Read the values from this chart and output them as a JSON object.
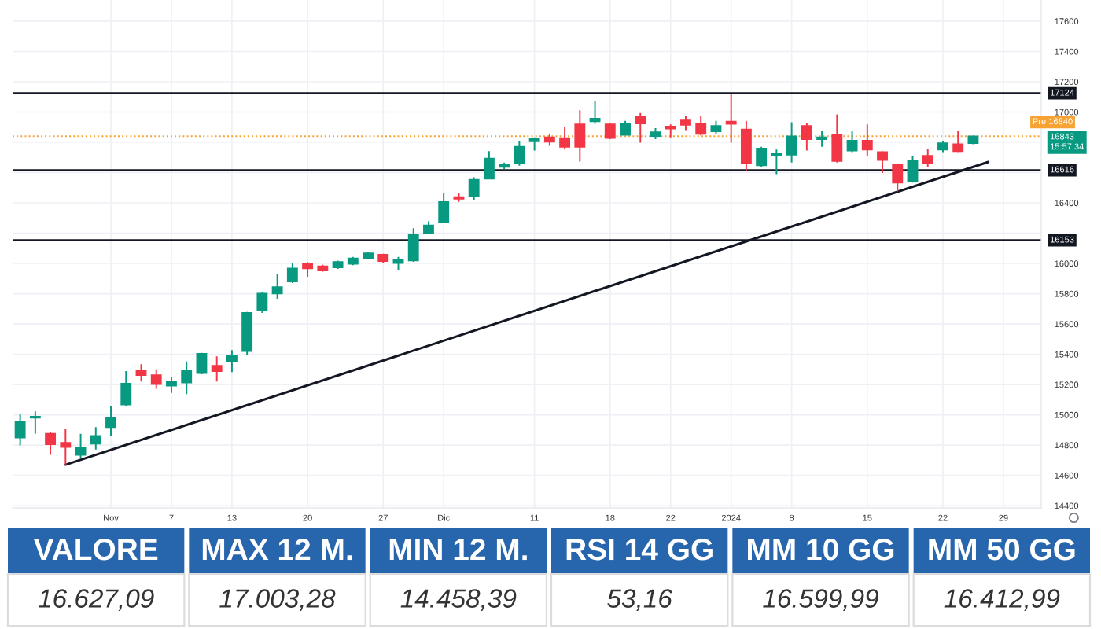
{
  "chart_data": [
    {
      "type": "candlestick",
      "categories": [
        null,
        null,
        null,
        null,
        null,
        null,
        "Nov",
        null,
        null,
        null,
        "7",
        null,
        null,
        null,
        "13",
        null,
        null,
        null,
        null,
        "20",
        null,
        null,
        null,
        null,
        "27",
        null,
        null,
        null,
        "Dic",
        null,
        null,
        null,
        null,
        null,
        "11",
        null,
        null,
        null,
        null,
        "18",
        null,
        null,
        null,
        "22",
        null,
        null,
        null,
        "2024",
        null,
        null,
        null,
        "8",
        null,
        null,
        null,
        null,
        "15",
        null,
        null,
        null,
        null,
        "22",
        null,
        null,
        null,
        "29",
        null,
        null
      ],
      "ohlc": [
        [
          14850,
          15006,
          14798,
          14954
        ],
        [
          14981,
          15023,
          14874,
          14988
        ],
        [
          14874,
          14885,
          14736,
          14805
        ],
        [
          14815,
          14909,
          14670,
          14788
        ],
        [
          14736,
          14874,
          14712,
          14781
        ],
        [
          14809,
          14919,
          14770,
          14860
        ],
        [
          14919,
          15057,
          14857,
          14981
        ],
        [
          15068,
          15289,
          15057,
          15206
        ],
        [
          15289,
          15334,
          15220,
          15262
        ],
        [
          15262,
          15300,
          15172,
          15203
        ],
        [
          15192,
          15248,
          15144,
          15220
        ],
        [
          15213,
          15352,
          15137,
          15289
        ],
        [
          15275,
          15410,
          15268,
          15403
        ],
        [
          15324,
          15386,
          15220,
          15289
        ],
        [
          15352,
          15428,
          15282,
          15393
        ],
        [
          15421,
          15680,
          15396,
          15673
        ],
        [
          15690,
          15811,
          15673,
          15801
        ],
        [
          15801,
          15929,
          15767,
          15843
        ],
        [
          15881,
          16002,
          15870,
          15967
        ],
        [
          15998,
          16009,
          15912,
          15967
        ],
        [
          15981,
          15991,
          15946,
          15953
        ],
        [
          15974,
          16019,
          15964,
          16009
        ],
        [
          15998,
          16043,
          15988,
          16033
        ],
        [
          16033,
          16078,
          16026,
          16067
        ],
        [
          16057,
          16064,
          16002,
          16015
        ],
        [
          16002,
          16043,
          15957,
          16023
        ],
        [
          16019,
          16233,
          16010,
          16192
        ],
        [
          16199,
          16278,
          16192,
          16251
        ],
        [
          16275,
          16465,
          16268,
          16406
        ],
        [
          16438,
          16465,
          16406,
          16427
        ],
        [
          16441,
          16569,
          16417,
          16552
        ],
        [
          16559,
          16742,
          16555,
          16693
        ],
        [
          16638,
          16666,
          16624,
          16655
        ],
        [
          16659,
          16811,
          16645,
          16770
        ],
        [
          16811,
          16832,
          16745,
          16825
        ],
        [
          16832,
          16856,
          16776,
          16804
        ],
        [
          16828,
          16904,
          16752,
          16770
        ],
        [
          16918,
          17012,
          16673,
          16770
        ],
        [
          16939,
          17074,
          16922,
          16956
        ],
        [
          16918,
          16925,
          16821,
          16828
        ],
        [
          16849,
          16942,
          16846,
          16925
        ],
        [
          16967,
          16994,
          16797,
          16925
        ],
        [
          16842,
          16894,
          16821,
          16866
        ],
        [
          16904,
          16918,
          16832,
          16891
        ],
        [
          16949,
          16977,
          16880,
          16915
        ],
        [
          16925,
          16977,
          16846,
          16856
        ],
        [
          16873,
          16942,
          16856,
          16908
        ],
        [
          16936,
          17122,
          16797,
          16922
        ],
        [
          16884,
          16942,
          16614,
          16659
        ],
        [
          16648,
          16770,
          16638,
          16759
        ],
        [
          16714,
          16752,
          16590,
          16728
        ],
        [
          16718,
          16932,
          16666,
          16839
        ],
        [
          16908,
          16925,
          16745,
          16821
        ],
        [
          16821,
          16873,
          16770,
          16832
        ],
        [
          16849,
          16984,
          16666,
          16676
        ],
        [
          16745,
          16873,
          16735,
          16811
        ],
        [
          16811,
          16918,
          16711,
          16752
        ],
        [
          16735,
          16742,
          16597,
          16683
        ],
        [
          16655,
          16659,
          16476,
          16534
        ],
        [
          16545,
          16711,
          16534,
          16676
        ],
        [
          16711,
          16759,
          16638,
          16659
        ],
        [
          16752,
          16811,
          16735,
          16794
        ],
        [
          16787,
          16873,
          16735,
          16742
        ],
        [
          16794,
          16846,
          16787,
          16839
        ],
        null,
        null,
        null,
        null
      ],
      "colors": [
        "#089981",
        "#089981",
        "#f23645",
        "#f23645",
        "#089981",
        "#089981",
        "#089981",
        "#089981",
        "#f23645",
        "#f23645",
        "#089981",
        "#089981",
        "#089981",
        "#f23645",
        "#089981",
        "#089981",
        "#089981",
        "#089981",
        "#089981",
        "#f23645",
        "#f23645",
        "#089981",
        "#089981",
        "#089981",
        "#f23645",
        "#089981",
        "#089981",
        "#089981",
        "#089981",
        "#f23645",
        "#089981",
        "#089981",
        "#089981",
        "#089981",
        "#089981",
        "#f23645",
        "#f23645",
        "#f23645",
        "#089981",
        "#f23645",
        "#089981",
        "#f23645",
        "#089981",
        "#f23645",
        "#f23645",
        "#f23645",
        "#089981",
        "#f23645",
        "#f23645",
        "#089981",
        "#089981",
        "#089981",
        "#f23645",
        "#089981",
        "#f23645",
        "#089981",
        "#f23645",
        "#f23645",
        "#f23645",
        "#089981",
        "#f23645",
        "#089981",
        "#f23645",
        "#089981",
        null,
        null,
        null,
        null
      ],
      "series": [
        {
          "type": "line",
          "color": "#131722",
          "values": [
            null,
            null,
            null,
            14670,
            null,
            null,
            null,
            null,
            null,
            null,
            null,
            null,
            null,
            null,
            null,
            null,
            null,
            null,
            null,
            null,
            null,
            null,
            null,
            null,
            null,
            null,
            null,
            null,
            null,
            null,
            null,
            null,
            null,
            null,
            null,
            null,
            null,
            null,
            null,
            null,
            null,
            null,
            null,
            null,
            null,
            null,
            null,
            null,
            null,
            null,
            null,
            null,
            null,
            null,
            null,
            null,
            null,
            null,
            null,
            null,
            null,
            null,
            null,
            null,
            16670,
            null,
            null,
            null
          ]
        }
      ],
      "ylim": [
        14385,
        17740
      ],
      "yticks": [
        14400,
        14600,
        14800,
        15000,
        15200,
        15400,
        15600,
        15800,
        16000,
        {
          "value": 16200,
          "label": null
        },
        16400,
        {
          "value": 16600,
          "label": null
        },
        {
          "value": 16800,
          "label": null
        },
        17000,
        17200,
        17400,
        17600
      ],
      "grid": true,
      "ref_lines": [
        {
          "axis": "y",
          "value": 17124,
          "label": "17124",
          "color": "#131722",
          "line_style": "solid"
        },
        {
          "axis": "y",
          "value": 16616,
          "label": "16616",
          "color": "#131722",
          "line_style": "solid"
        },
        {
          "axis": "y",
          "value": 16153,
          "label": "16153",
          "color": "#131722",
          "line_style": "solid"
        },
        {
          "axis": "y",
          "value": 16840,
          "label": "Pre 16840",
          "color": "#f7a334",
          "line_style": "dotted"
        }
      ],
      "annotations": [
        "16843\n15:57:34"
      ]
    },
    {
      "type": "other",
      "categories": [
        "VALORE",
        "MAX 12 M.",
        "MIN 12 M.",
        "RSI 14 GG",
        "MM 10 GG",
        "MM 50 GG"
      ],
      "value_labels": [
        "16.627,09",
        "17.003,28",
        "14.458,39",
        "53,16",
        "16.599,99",
        "16.412,99"
      ],
      "color": "#2766ad"
    }
  ]
}
